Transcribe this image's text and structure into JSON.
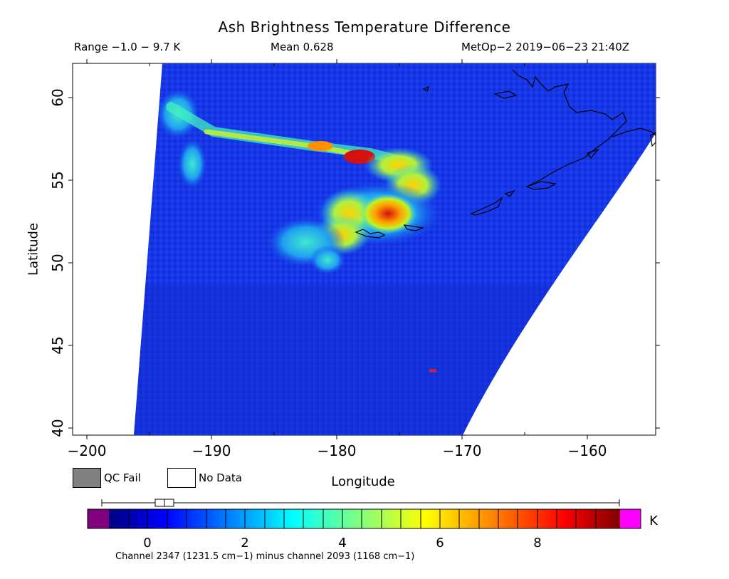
{
  "title": "Ash Brightness Temperature Difference",
  "header": {
    "range": "Range −1.0 − 9.7 K",
    "mean": "Mean 0.628",
    "satellite_time": "MetOp−2 2019−06−23 21:40Z"
  },
  "axes": {
    "xlabel": "Longitude",
    "ylabel": "Latitude",
    "x_ticks": [
      "−200",
      "−190",
      "−180",
      "−170",
      "−160"
    ],
    "y_ticks": [
      "60",
      "55",
      "50",
      "45",
      "40"
    ],
    "x_range": [
      -201,
      -155
    ],
    "y_range": [
      39.5,
      62
    ]
  },
  "legend": {
    "qc_fail": "QC Fail",
    "no_data": "No Data",
    "qc_fail_color": "#808080",
    "no_data_color": "#ffffff"
  },
  "colorbar": {
    "unit": "K",
    "ticks": [
      "0",
      "2",
      "4",
      "6",
      "8"
    ],
    "range": [
      -1.0,
      9.7
    ],
    "note": "Channel 2347 (1231.5 cm−1) minus channel 2093 (1168 cm−1)",
    "below_color": "#800080",
    "above_color": "#ff00ff"
  },
  "map": {
    "background_color": "#1432e6",
    "features": [
      "volcanic-ash-plume",
      "coastlines"
    ]
  }
}
